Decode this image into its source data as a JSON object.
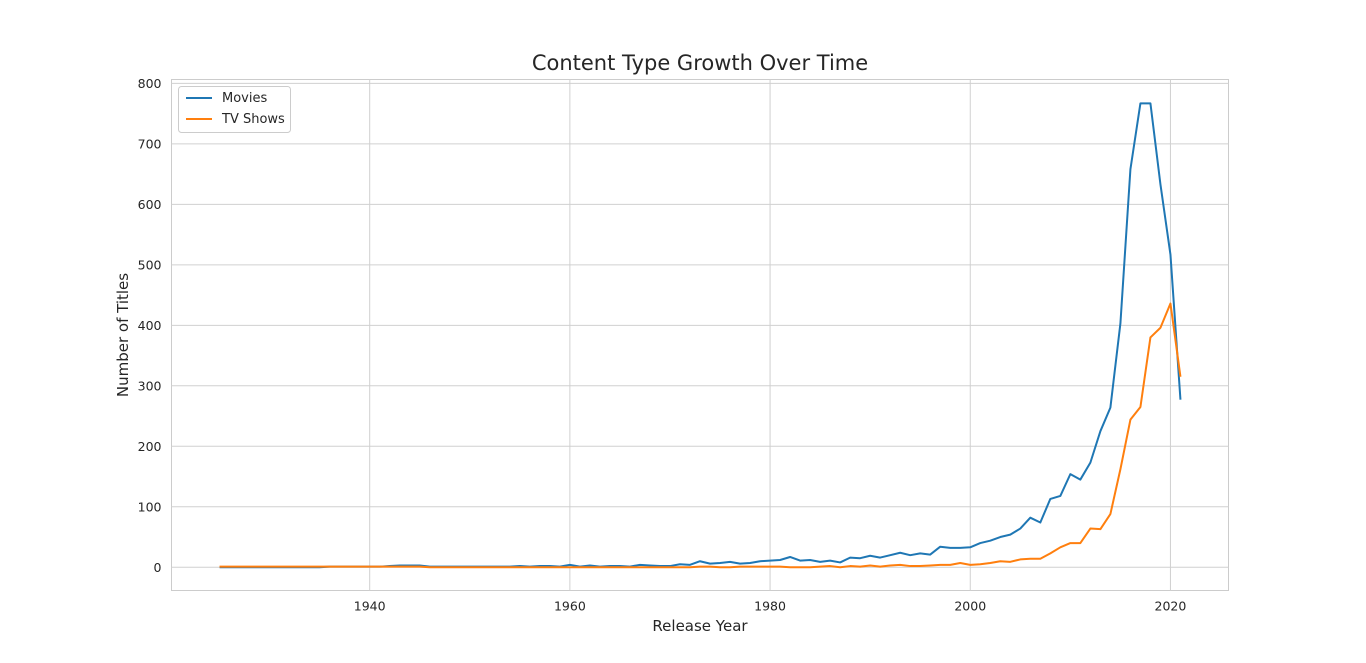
{
  "chart_data": {
    "type": "line",
    "title": "Content Type Growth Over Time",
    "xlabel": "Release Year",
    "ylabel": "Number of Titles",
    "xlim": [
      1920.2,
      2025.8
    ],
    "ylim": [
      -38.4,
      806.4
    ],
    "xticks": [
      1940,
      1960,
      1980,
      2000,
      2020
    ],
    "yticks": [
      0,
      100,
      200,
      300,
      400,
      500,
      600,
      700,
      800
    ],
    "grid": true,
    "legend_position": "top-left",
    "series": [
      {
        "name": "Movies",
        "color": "#1f77b4",
        "x": [
          1925,
          1926,
          1927,
          1928,
          1929,
          1930,
          1931,
          1932,
          1933,
          1934,
          1935,
          1936,
          1937,
          1938,
          1939,
          1940,
          1941,
          1942,
          1943,
          1944,
          1945,
          1946,
          1947,
          1948,
          1949,
          1950,
          1951,
          1952,
          1953,
          1954,
          1955,
          1956,
          1957,
          1958,
          1959,
          1960,
          1961,
          1962,
          1963,
          1964,
          1965,
          1966,
          1967,
          1968,
          1969,
          1970,
          1971,
          1972,
          1973,
          1974,
          1975,
          1976,
          1977,
          1978,
          1979,
          1980,
          1981,
          1982,
          1983,
          1984,
          1985,
          1986,
          1987,
          1988,
          1989,
          1990,
          1991,
          1992,
          1993,
          1994,
          1995,
          1996,
          1997,
          1998,
          1999,
          2000,
          2001,
          2002,
          2003,
          2004,
          2005,
          2006,
          2007,
          2008,
          2009,
          2010,
          2011,
          2012,
          2013,
          2014,
          2015,
          2016,
          2017,
          2018,
          2019,
          2020,
          2021
        ],
        "y": [
          0,
          0,
          0,
          0,
          0,
          0,
          0,
          0,
          0,
          0,
          0,
          1,
          1,
          1,
          1,
          1,
          1,
          2,
          3,
          3,
          3,
          1,
          1,
          1,
          1,
          1,
          1,
          1,
          1,
          1,
          2,
          1,
          2,
          2,
          1,
          4,
          1,
          3,
          1,
          2,
          2,
          1,
          4,
          3,
          2,
          2,
          5,
          4,
          10,
          6,
          7,
          9,
          6,
          7,
          10,
          11,
          12,
          17,
          11,
          12,
          9,
          11,
          8,
          16,
          15,
          19,
          16,
          20,
          24,
          20,
          23,
          21,
          34,
          32,
          32,
          33,
          40,
          44,
          50,
          54,
          64,
          82,
          74,
          113,
          118,
          154,
          145,
          173,
          225,
          264,
          403,
          658,
          767,
          767,
          633,
          517,
          277
        ]
      },
      {
        "name": "TV Shows",
        "color": "#ff7f0e",
        "x": [
          1925,
          1926,
          1927,
          1928,
          1929,
          1930,
          1931,
          1932,
          1933,
          1934,
          1935,
          1936,
          1937,
          1938,
          1939,
          1940,
          1941,
          1942,
          1943,
          1944,
          1945,
          1946,
          1947,
          1948,
          1949,
          1950,
          1951,
          1952,
          1953,
          1954,
          1955,
          1956,
          1957,
          1958,
          1959,
          1960,
          1961,
          1962,
          1963,
          1964,
          1965,
          1966,
          1967,
          1968,
          1969,
          1970,
          1971,
          1972,
          1973,
          1974,
          1975,
          1976,
          1977,
          1978,
          1979,
          1980,
          1981,
          1982,
          1983,
          1984,
          1985,
          1986,
          1987,
          1988,
          1989,
          1990,
          1991,
          1992,
          1993,
          1994,
          1995,
          1996,
          1997,
          1998,
          1999,
          2000,
          2001,
          2002,
          2003,
          2004,
          2005,
          2006,
          2007,
          2008,
          2009,
          2010,
          2011,
          2012,
          2013,
          2014,
          2015,
          2016,
          2017,
          2018,
          2019,
          2020,
          2021
        ],
        "y": [
          1,
          1,
          1,
          1,
          1,
          1,
          1,
          1,
          1,
          1,
          1,
          1,
          1,
          1,
          1,
          1,
          1,
          1,
          1,
          1,
          1,
          0,
          0,
          0,
          0,
          0,
          0,
          0,
          0,
          0,
          0,
          0,
          0,
          0,
          0,
          0,
          0,
          0,
          0,
          0,
          0,
          0,
          0,
          0,
          0,
          0,
          0,
          0,
          1,
          1,
          0,
          0,
          1,
          1,
          1,
          1,
          1,
          0,
          0,
          0,
          1,
          2,
          0,
          2,
          1,
          3,
          1,
          3,
          4,
          2,
          2,
          3,
          4,
          4,
          7,
          4,
          5,
          7,
          10,
          9,
          13,
          14,
          14,
          23,
          33,
          40,
          40,
          64,
          63,
          88,
          162,
          244,
          265,
          380,
          396,
          436,
          315
        ]
      }
    ]
  }
}
